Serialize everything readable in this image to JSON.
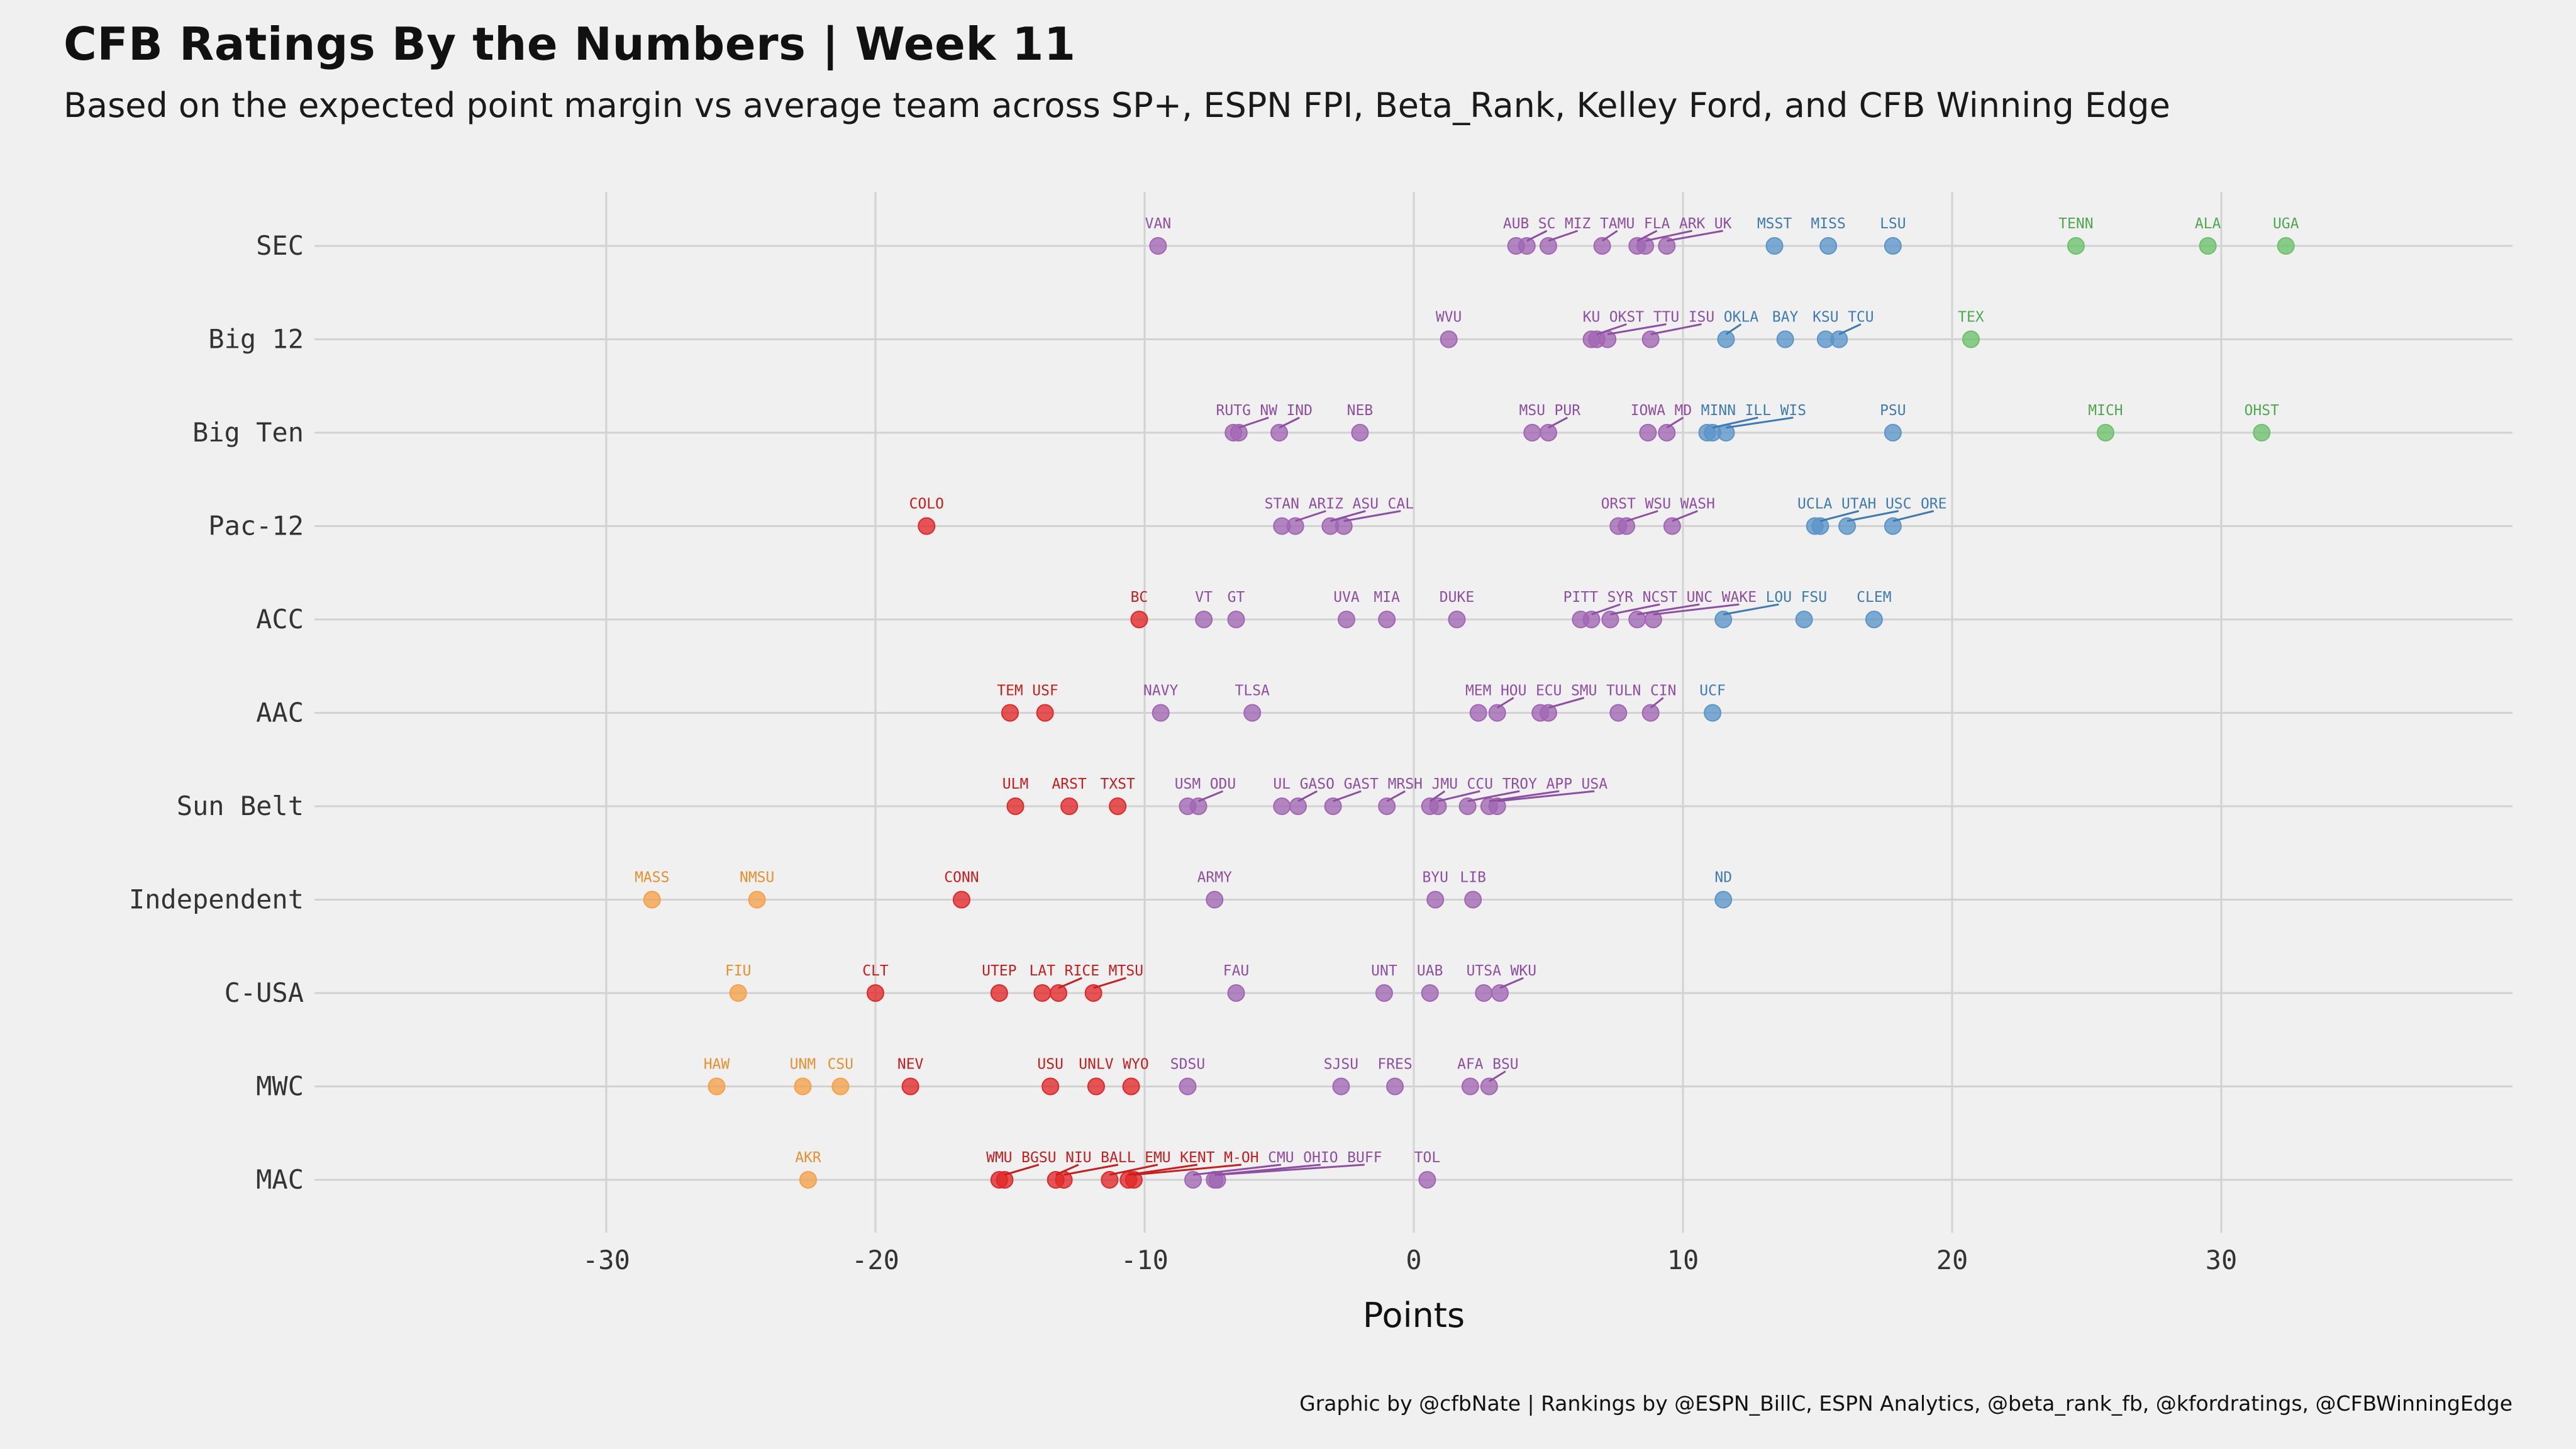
{
  "header": {
    "title": "CFB Ratings By the Numbers | Week 11",
    "subtitle": "Based on the expected point margin vs average team across SP+, ESPN FPI, Beta_Rank, Kelley Ford, and CFB Winning Edge",
    "caption": "Graphic by @cfbNate | Rankings by @ESPN_BillC, ESPN Analytics, @beta_rank_fb, @kfordratings, @CFBWinningEdge"
  },
  "chart_data": {
    "type": "scatter",
    "title": "CFB Ratings By the Numbers | Week 11",
    "subtitle": "Based on the expected point margin vs average team across SP+, ESPN FPI, Beta_Rank, Kelley Ford, and CFB Winning Edge",
    "xlabel": "Points",
    "ylabel": "",
    "xlim": [
      -41,
      41
    ],
    "xticks": [
      -30,
      -20,
      -10,
      0,
      10,
      20,
      30
    ],
    "grid": true,
    "legend": "none",
    "colors": {
      "orange": "#f5a04a",
      "red": "#e02828",
      "purple": "#a066b4",
      "blue": "#5b95c8",
      "green": "#6cc06c"
    },
    "conferences": [
      {
        "name": "SEC",
        "teams": [
          {
            "t": "VAN",
            "x": -9.5,
            "c": "purple"
          },
          {
            "t": "AUB",
            "x": 3.8,
            "c": "purple"
          },
          {
            "t": "SC",
            "x": 4.2,
            "c": "purple"
          },
          {
            "t": "MIZ",
            "x": 5.0,
            "c": "purple"
          },
          {
            "t": "TAMU",
            "x": 7.0,
            "c": "purple"
          },
          {
            "t": "FLA",
            "x": 8.3,
            "c": "purple"
          },
          {
            "t": "ARK",
            "x": 8.6,
            "c": "purple"
          },
          {
            "t": "UK",
            "x": 9.4,
            "c": "purple"
          },
          {
            "t": "MSST",
            "x": 13.4,
            "c": "blue"
          },
          {
            "t": "MISS",
            "x": 15.4,
            "c": "blue"
          },
          {
            "t": "LSU",
            "x": 17.8,
            "c": "blue"
          },
          {
            "t": "TENN",
            "x": 24.6,
            "c": "green"
          },
          {
            "t": "ALA",
            "x": 29.5,
            "c": "green"
          },
          {
            "t": "UGA",
            "x": 32.4,
            "c": "green"
          }
        ]
      },
      {
        "name": "Big 12",
        "teams": [
          {
            "t": "WVU",
            "x": 1.3,
            "c": "purple"
          },
          {
            "t": "KU",
            "x": 6.6,
            "c": "purple"
          },
          {
            "t": "OKST",
            "x": 6.8,
            "c": "purple"
          },
          {
            "t": "TTU",
            "x": 7.2,
            "c": "purple"
          },
          {
            "t": "ISU",
            "x": 8.8,
            "c": "purple"
          },
          {
            "t": "OKLA",
            "x": 11.6,
            "c": "blue"
          },
          {
            "t": "BAY",
            "x": 13.8,
            "c": "blue"
          },
          {
            "t": "KSU",
            "x": 15.3,
            "c": "blue"
          },
          {
            "t": "TCU",
            "x": 15.8,
            "c": "blue"
          },
          {
            "t": "TEX",
            "x": 20.7,
            "c": "green"
          }
        ]
      },
      {
        "name": "Big Ten",
        "teams": [
          {
            "t": "RUTG",
            "x": -6.7,
            "c": "purple"
          },
          {
            "t": "NW",
            "x": -6.5,
            "c": "purple"
          },
          {
            "t": "IND",
            "x": -5.0,
            "c": "purple"
          },
          {
            "t": "NEB",
            "x": -2.0,
            "c": "purple"
          },
          {
            "t": "MSU",
            "x": 4.4,
            "c": "purple"
          },
          {
            "t": "PUR",
            "x": 5.0,
            "c": "purple"
          },
          {
            "t": "IOWA",
            "x": 8.7,
            "c": "purple"
          },
          {
            "t": "MD",
            "x": 9.4,
            "c": "purple"
          },
          {
            "t": "MINN",
            "x": 10.9,
            "c": "blue"
          },
          {
            "t": "ILL",
            "x": 11.1,
            "c": "blue"
          },
          {
            "t": "WIS",
            "x": 11.6,
            "c": "blue"
          },
          {
            "t": "PSU",
            "x": 17.8,
            "c": "blue"
          },
          {
            "t": "MICH",
            "x": 25.7,
            "c": "green"
          },
          {
            "t": "OHST",
            "x": 31.5,
            "c": "green"
          }
        ]
      },
      {
        "name": "Pac-12",
        "teams": [
          {
            "t": "COLO",
            "x": -18.1,
            "c": "red"
          },
          {
            "t": "STAN",
            "x": -4.9,
            "c": "purple"
          },
          {
            "t": "ARIZ",
            "x": -4.4,
            "c": "purple"
          },
          {
            "t": "ASU",
            "x": -3.1,
            "c": "purple"
          },
          {
            "t": "CAL",
            "x": -2.6,
            "c": "purple"
          },
          {
            "t": "ORST",
            "x": 7.6,
            "c": "purple"
          },
          {
            "t": "WSU",
            "x": 7.9,
            "c": "purple"
          },
          {
            "t": "WASH",
            "x": 9.6,
            "c": "purple"
          },
          {
            "t": "UCLA",
            "x": 14.9,
            "c": "blue"
          },
          {
            "t": "UTAH",
            "x": 15.1,
            "c": "blue"
          },
          {
            "t": "USC",
            "x": 16.1,
            "c": "blue"
          },
          {
            "t": "ORE",
            "x": 17.8,
            "c": "blue"
          }
        ]
      },
      {
        "name": "ACC",
        "teams": [
          {
            "t": "BC",
            "x": -10.2,
            "c": "red"
          },
          {
            "t": "VT",
            "x": -7.8,
            "c": "purple"
          },
          {
            "t": "GT",
            "x": -6.6,
            "c": "purple"
          },
          {
            "t": "UVA",
            "x": -2.5,
            "c": "purple"
          },
          {
            "t": "MIA",
            "x": -1.0,
            "c": "purple"
          },
          {
            "t": "DUKE",
            "x": 1.6,
            "c": "purple"
          },
          {
            "t": "PITT",
            "x": 6.2,
            "c": "purple"
          },
          {
            "t": "SYR",
            "x": 6.6,
            "c": "purple"
          },
          {
            "t": "NCST",
            "x": 7.3,
            "c": "purple"
          },
          {
            "t": "UNC",
            "x": 8.3,
            "c": "purple"
          },
          {
            "t": "WAKE",
            "x": 8.9,
            "c": "purple"
          },
          {
            "t": "LOU",
            "x": 11.5,
            "c": "blue"
          },
          {
            "t": "FSU",
            "x": 14.5,
            "c": "blue"
          },
          {
            "t": "CLEM",
            "x": 17.1,
            "c": "blue"
          }
        ]
      },
      {
        "name": "AAC",
        "teams": [
          {
            "t": "TEM",
            "x": -15.0,
            "c": "red"
          },
          {
            "t": "USF",
            "x": -13.7,
            "c": "red"
          },
          {
            "t": "NAVY",
            "x": -9.4,
            "c": "purple"
          },
          {
            "t": "TLSA",
            "x": -6.0,
            "c": "purple"
          },
          {
            "t": "MEM",
            "x": 2.4,
            "c": "purple"
          },
          {
            "t": "HOU",
            "x": 3.1,
            "c": "purple"
          },
          {
            "t": "ECU",
            "x": 4.7,
            "c": "purple"
          },
          {
            "t": "SMU",
            "x": 5.0,
            "c": "purple"
          },
          {
            "t": "TULN",
            "x": 7.6,
            "c": "purple"
          },
          {
            "t": "CIN",
            "x": 8.8,
            "c": "purple"
          },
          {
            "t": "UCF",
            "x": 11.1,
            "c": "blue"
          }
        ]
      },
      {
        "name": "Sun Belt",
        "teams": [
          {
            "t": "ULM",
            "x": -14.8,
            "c": "red"
          },
          {
            "t": "ARST",
            "x": -12.8,
            "c": "red"
          },
          {
            "t": "TXST",
            "x": -11.0,
            "c": "red"
          },
          {
            "t": "USM",
            "x": -8.4,
            "c": "purple"
          },
          {
            "t": "ODU",
            "x": -8.0,
            "c": "purple"
          },
          {
            "t": "UL",
            "x": -4.9,
            "c": "purple"
          },
          {
            "t": "GASO",
            "x": -4.3,
            "c": "purple"
          },
          {
            "t": "GAST",
            "x": -3.0,
            "c": "purple"
          },
          {
            "t": "MRSH",
            "x": -1.0,
            "c": "purple"
          },
          {
            "t": "JMU",
            "x": 0.6,
            "c": "purple"
          },
          {
            "t": "CCU",
            "x": 0.9,
            "c": "purple"
          },
          {
            "t": "TROY",
            "x": 2.0,
            "c": "purple"
          },
          {
            "t": "APP",
            "x": 2.8,
            "c": "purple"
          },
          {
            "t": "USA",
            "x": 3.1,
            "c": "purple"
          }
        ]
      },
      {
        "name": "Independent",
        "teams": [
          {
            "t": "MASS",
            "x": -28.3,
            "c": "orange"
          },
          {
            "t": "NMSU",
            "x": -24.4,
            "c": "orange"
          },
          {
            "t": "CONN",
            "x": -16.8,
            "c": "red"
          },
          {
            "t": "ARMY",
            "x": -7.4,
            "c": "purple"
          },
          {
            "t": "BYU",
            "x": 0.8,
            "c": "purple"
          },
          {
            "t": "LIB",
            "x": 2.2,
            "c": "purple"
          },
          {
            "t": "ND",
            "x": 11.5,
            "c": "blue"
          }
        ]
      },
      {
        "name": "C-USA",
        "teams": [
          {
            "t": "FIU",
            "x": -25.1,
            "c": "orange"
          },
          {
            "t": "CLT",
            "x": -20.0,
            "c": "red"
          },
          {
            "t": "UTEP",
            "x": -15.4,
            "c": "red"
          },
          {
            "t": "LAT",
            "x": -13.8,
            "c": "red"
          },
          {
            "t": "RICE",
            "x": -13.2,
            "c": "red"
          },
          {
            "t": "MTSU",
            "x": -11.9,
            "c": "red"
          },
          {
            "t": "FAU",
            "x": -6.6,
            "c": "purple"
          },
          {
            "t": "UNT",
            "x": -1.1,
            "c": "purple"
          },
          {
            "t": "UAB",
            "x": 0.6,
            "c": "purple"
          },
          {
            "t": "UTSA",
            "x": 2.6,
            "c": "purple"
          },
          {
            "t": "WKU",
            "x": 3.2,
            "c": "purple"
          }
        ]
      },
      {
        "name": "MWC",
        "teams": [
          {
            "t": "HAW",
            "x": -25.9,
            "c": "orange"
          },
          {
            "t": "UNM",
            "x": -22.7,
            "c": "orange"
          },
          {
            "t": "CSU",
            "x": -21.3,
            "c": "orange"
          },
          {
            "t": "NEV",
            "x": -18.7,
            "c": "red"
          },
          {
            "t": "USU",
            "x": -13.5,
            "c": "red"
          },
          {
            "t": "UNLV",
            "x": -11.8,
            "c": "red"
          },
          {
            "t": "WYO",
            "x": -10.5,
            "c": "red"
          },
          {
            "t": "SDSU",
            "x": -8.4,
            "c": "purple"
          },
          {
            "t": "SJSU",
            "x": -2.7,
            "c": "purple"
          },
          {
            "t": "FRES",
            "x": -0.7,
            "c": "purple"
          },
          {
            "t": "AFA",
            "x": 2.1,
            "c": "purple"
          },
          {
            "t": "BSU",
            "x": 2.8,
            "c": "purple"
          }
        ]
      },
      {
        "name": "MAC",
        "teams": [
          {
            "t": "AKR",
            "x": -22.5,
            "c": "orange"
          },
          {
            "t": "WMU",
            "x": -15.4,
            "c": "red"
          },
          {
            "t": "BGSU",
            "x": -15.2,
            "c": "red"
          },
          {
            "t": "NIU",
            "x": -13.3,
            "c": "red"
          },
          {
            "t": "BALL",
            "x": -13.0,
            "c": "red"
          },
          {
            "t": "EMU",
            "x": -11.3,
            "c": "red"
          },
          {
            "t": "KENT",
            "x": -10.6,
            "c": "red"
          },
          {
            "t": "M-OH",
            "x": -10.4,
            "c": "red"
          },
          {
            "t": "CMU",
            "x": -8.2,
            "c": "purple"
          },
          {
            "t": "OHIO",
            "x": -7.4,
            "c": "purple"
          },
          {
            "t": "BUFF",
            "x": -7.3,
            "c": "purple"
          },
          {
            "t": "TOL",
            "x": 0.5,
            "c": "purple"
          }
        ]
      }
    ]
  }
}
